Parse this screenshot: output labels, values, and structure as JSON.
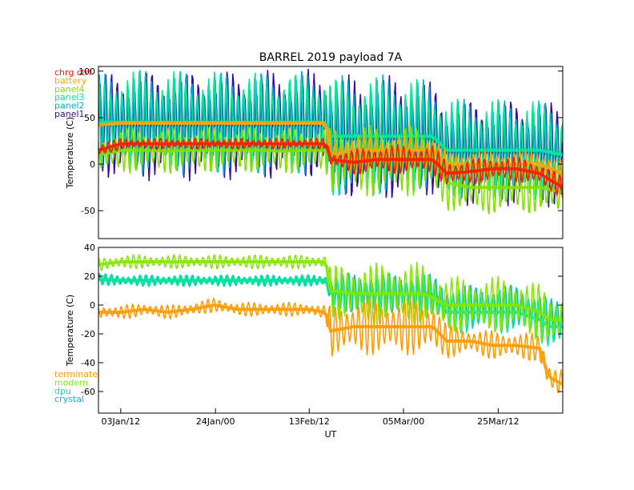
{
  "chart_data": [
    {
      "type": "line",
      "title": "BARREL 2019 payload 7A",
      "ylabel": "Temperature (C)",
      "ylim": [
        -80,
        105
      ],
      "yticks": [
        100,
        50,
        0,
        -50
      ],
      "ytick_labels": [
        "100",
        "50",
        "0",
        "-50"
      ],
      "xlim": [
        0,
        100
      ],
      "x": [
        0,
        5,
        10,
        15,
        20,
        25,
        30,
        35,
        40,
        45,
        49,
        50,
        55,
        60,
        65,
        70,
        72,
        75,
        80,
        85,
        90,
        95,
        100
      ],
      "series": [
        {
          "name": "chrg ctrl",
          "color": "#ff1a00",
          "mid": [
            15,
            22,
            22,
            22,
            22,
            22,
            22,
            22,
            22,
            22,
            22,
            5,
            2,
            5,
            5,
            5,
            5,
            -10,
            -8,
            -5,
            -5,
            -10,
            -25
          ],
          "amp": [
            8,
            6,
            6,
            6,
            6,
            6,
            6,
            6,
            6,
            6,
            6,
            8,
            14,
            16,
            16,
            16,
            16,
            15,
            14,
            14,
            14,
            14,
            12
          ]
        },
        {
          "name": "battery",
          "color": "#ffa500",
          "mid": [
            42,
            44,
            44,
            44,
            44,
            44,
            44,
            44,
            44,
            44,
            44,
            10,
            15,
            15,
            15,
            15,
            15,
            0,
            0,
            0,
            0,
            0,
            -10
          ],
          "amp": [
            3,
            2,
            2,
            2,
            2,
            2,
            2,
            2,
            2,
            2,
            2,
            15,
            15,
            15,
            15,
            15,
            15,
            15,
            15,
            15,
            15,
            15,
            15
          ]
        },
        {
          "name": "panel4",
          "color": "#84e000",
          "mid": [
            10,
            15,
            15,
            14,
            15,
            15,
            15,
            15,
            14,
            15,
            15,
            5,
            5,
            5,
            5,
            5,
            5,
            -20,
            -25,
            -25,
            -25,
            -25,
            -30
          ],
          "amp": [
            20,
            25,
            25,
            25,
            25,
            25,
            25,
            25,
            25,
            25,
            25,
            35,
            40,
            40,
            40,
            40,
            40,
            30,
            30,
            30,
            30,
            30,
            30
          ]
        },
        {
          "name": "panel3",
          "color": "#00e898",
          "mid": [
            45,
            45,
            45,
            45,
            45,
            45,
            45,
            45,
            45,
            45,
            45,
            30,
            30,
            30,
            30,
            30,
            30,
            15,
            15,
            15,
            15,
            15,
            10
          ],
          "amp": [
            50,
            55,
            55,
            55,
            55,
            55,
            55,
            55,
            55,
            55,
            55,
            65,
            65,
            65,
            65,
            60,
            60,
            55,
            55,
            55,
            55,
            55,
            55
          ]
        },
        {
          "name": "panel2",
          "color": "#00a8d8",
          "mid": [
            45,
            45,
            45,
            45,
            45,
            45,
            45,
            45,
            45,
            45,
            45,
            30,
            30,
            30,
            30,
            30,
            30,
            15,
            15,
            15,
            15,
            15,
            10
          ],
          "amp": [
            52,
            57,
            57,
            57,
            57,
            57,
            57,
            57,
            57,
            57,
            57,
            66,
            66,
            66,
            66,
            61,
            61,
            56,
            56,
            56,
            56,
            56,
            56
          ]
        },
        {
          "name": "panel1",
          "color": "#3a0aa0",
          "mid": [
            42,
            42,
            42,
            42,
            42,
            42,
            42,
            42,
            42,
            42,
            42,
            28,
            28,
            28,
            28,
            28,
            28,
            13,
            13,
            13,
            13,
            13,
            8
          ],
          "amp": [
            55,
            60,
            60,
            60,
            60,
            60,
            60,
            60,
            60,
            60,
            60,
            68,
            68,
            68,
            68,
            63,
            63,
            58,
            58,
            58,
            58,
            58,
            58
          ]
        }
      ]
    },
    {
      "type": "line",
      "xlabel": "UT",
      "ylabel": "Temperature (C)",
      "ylim": [
        -75,
        40
      ],
      "yticks": [
        40,
        20,
        0,
        -20,
        -40,
        -60
      ],
      "ytick_labels": [
        "40",
        "20",
        "0",
        "-20",
        "-40",
        "-60"
      ],
      "xlim": [
        0,
        100
      ],
      "xtick_labels": [
        "03Jan/12",
        "24Jan/00",
        "13Feb/12",
        "05Mar/00",
        "25Mar/12"
      ],
      "xtick_positions": [
        4.8,
        25.2,
        45.4,
        65.7,
        86.1
      ],
      "x": [
        0,
        5,
        10,
        15,
        20,
        25,
        30,
        35,
        40,
        45,
        49,
        50,
        55,
        60,
        65,
        70,
        72,
        75,
        80,
        85,
        90,
        95,
        97,
        100
      ],
      "series": [
        {
          "name": "terminate",
          "color": "#ff9a00",
          "mid": [
            -5,
            -5,
            -3,
            -5,
            -3,
            0,
            -3,
            -3,
            -3,
            -3,
            -5,
            -18,
            -15,
            -15,
            -15,
            -15,
            -15,
            -25,
            -25,
            -28,
            -28,
            -30,
            -50,
            -55
          ],
          "amp": [
            5,
            5,
            5,
            5,
            5,
            5,
            5,
            5,
            5,
            5,
            5,
            18,
            20,
            20,
            20,
            20,
            20,
            12,
            10,
            10,
            10,
            10,
            12,
            12
          ]
        },
        {
          "name": "modem",
          "color": "#84e800",
          "mid": [
            28,
            30,
            30,
            30,
            30,
            30,
            30,
            30,
            30,
            30,
            30,
            10,
            8,
            8,
            8,
            8,
            5,
            0,
            0,
            0,
            0,
            -5,
            -10,
            -10
          ],
          "amp": [
            5,
            5,
            5,
            5,
            5,
            5,
            5,
            5,
            5,
            5,
            5,
            18,
            22,
            22,
            22,
            22,
            22,
            20,
            20,
            20,
            20,
            20,
            20,
            20
          ]
        },
        {
          "name": "dpu",
          "color": "#00e898",
          "mid": [
            18,
            17,
            17,
            17,
            17,
            17,
            17,
            17,
            17,
            17,
            17,
            8,
            8,
            8,
            8,
            8,
            8,
            -5,
            -5,
            -5,
            -5,
            -10,
            -15,
            -15
          ],
          "amp": [
            4,
            4,
            4,
            4,
            4,
            4,
            4,
            4,
            4,
            4,
            4,
            14,
            14,
            14,
            14,
            14,
            14,
            15,
            15,
            15,
            15,
            15,
            15,
            15
          ]
        },
        {
          "name": "crystal",
          "color": "#00b8e0",
          "mid": [
            18,
            17,
            17,
            17,
            17,
            17,
            17,
            17,
            17,
            17,
            17,
            8,
            8,
            8,
            8,
            8,
            8,
            0,
            0,
            0,
            0,
            -5,
            -10,
            -10
          ],
          "amp": [
            4,
            4,
            4,
            4,
            4,
            4,
            4,
            4,
            4,
            4,
            4,
            14,
            14,
            14,
            14,
            14,
            14,
            15,
            15,
            15,
            15,
            15,
            15,
            15
          ]
        }
      ]
    }
  ]
}
